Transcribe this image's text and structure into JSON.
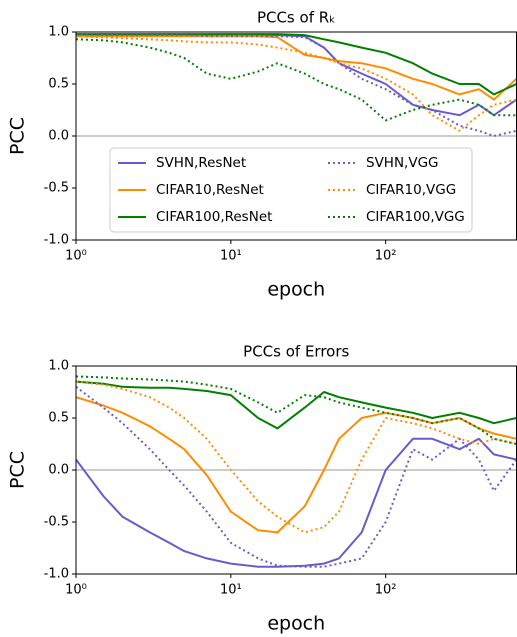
{
  "chart_data": [
    {
      "type": "line",
      "title": "PCCs of Rₖ",
      "xlabel": "epoch",
      "ylabel": "PCC",
      "xscale": "log",
      "xlim": [
        1,
        700
      ],
      "xticks": [
        {
          "value": 1,
          "label": "10⁰"
        },
        {
          "value": 10,
          "label": "10¹"
        },
        {
          "value": 100,
          "label": "10²"
        }
      ],
      "ylim": [
        -1,
        1
      ],
      "yticks": [
        {
          "value": -1,
          "label": "-1.0"
        },
        {
          "value": -0.5,
          "label": "-0.5"
        },
        {
          "value": 0,
          "label": "0.0"
        },
        {
          "value": 0.5,
          "label": "0.5"
        },
        {
          "value": 1,
          "label": "1.0"
        }
      ],
      "hline": 0,
      "legend": "lower center",
      "x": [
        1,
        1.5,
        2,
        3,
        4,
        5,
        7,
        10,
        15,
        20,
        30,
        40,
        50,
        70,
        100,
        150,
        200,
        300,
        400,
        500,
        700
      ],
      "series": [
        {
          "name": "SVHN,ResNet",
          "color": "#6a5acd",
          "style": "solid",
          "values": [
            0.97,
            0.97,
            0.97,
            0.97,
            0.97,
            0.97,
            0.97,
            0.97,
            0.97,
            0.97,
            0.96,
            0.85,
            0.7,
            0.6,
            0.5,
            0.3,
            0.25,
            0.2,
            0.3,
            0.2,
            0.35
          ]
        },
        {
          "name": "CIFAR10,ResNet",
          "color": "#ff8c00",
          "style": "solid",
          "values": [
            0.96,
            0.96,
            0.96,
            0.96,
            0.96,
            0.96,
            0.96,
            0.96,
            0.96,
            0.95,
            0.78,
            0.75,
            0.72,
            0.7,
            0.65,
            0.55,
            0.5,
            0.4,
            0.45,
            0.35,
            0.55
          ]
        },
        {
          "name": "CIFAR100,ResNet",
          "color": "#008000",
          "style": "solid",
          "values": [
            0.98,
            0.98,
            0.98,
            0.98,
            0.98,
            0.98,
            0.98,
            0.98,
            0.98,
            0.98,
            0.97,
            0.93,
            0.9,
            0.85,
            0.8,
            0.7,
            0.6,
            0.5,
            0.5,
            0.4,
            0.5
          ]
        },
        {
          "name": "SVHN,VGG",
          "color": "#6a5acd",
          "style": "dotted",
          "values": [
            0.97,
            0.97,
            0.97,
            0.97,
            0.97,
            0.97,
            0.96,
            0.96,
            0.96,
            0.96,
            0.95,
            0.85,
            0.7,
            0.55,
            0.45,
            0.3,
            0.25,
            0.1,
            0.05,
            0.0,
            0.05
          ]
        },
        {
          "name": "CIFAR10,VGG",
          "color": "#ff8c00",
          "style": "dotted",
          "values": [
            0.96,
            0.95,
            0.94,
            0.93,
            0.92,
            0.91,
            0.9,
            0.9,
            0.88,
            0.85,
            0.8,
            0.75,
            0.7,
            0.65,
            0.55,
            0.4,
            0.2,
            0.05,
            0.2,
            0.3,
            0.35
          ]
        },
        {
          "name": "CIFAR100,VGG",
          "color": "#008000",
          "style": "dotted",
          "values": [
            0.93,
            0.92,
            0.9,
            0.85,
            0.8,
            0.75,
            0.6,
            0.55,
            0.62,
            0.7,
            0.6,
            0.5,
            0.45,
            0.35,
            0.15,
            0.25,
            0.3,
            0.35,
            0.3,
            0.2,
            0.2
          ]
        }
      ]
    },
    {
      "type": "line",
      "title": "PCCs of Errors",
      "xlabel": "epoch",
      "ylabel": "PCC",
      "xscale": "log",
      "xlim": [
        1,
        700
      ],
      "xticks": [
        {
          "value": 1,
          "label": "10⁰"
        },
        {
          "value": 10,
          "label": "10¹"
        },
        {
          "value": 100,
          "label": "10²"
        }
      ],
      "ylim": [
        -1,
        1
      ],
      "yticks": [
        {
          "value": -1,
          "label": "-1.0"
        },
        {
          "value": -0.5,
          "label": "-0.5"
        },
        {
          "value": 0,
          "label": "0.0"
        },
        {
          "value": 0.5,
          "label": "0.5"
        },
        {
          "value": 1,
          "label": "1.0"
        }
      ],
      "hline": 0,
      "x": [
        1,
        1.5,
        2,
        3,
        4,
        5,
        7,
        10,
        15,
        20,
        30,
        40,
        50,
        70,
        100,
        150,
        200,
        300,
        400,
        500,
        700
      ],
      "series": [
        {
          "name": "SVHN,ResNet",
          "color": "#6a5acd",
          "style": "solid",
          "values": [
            0.1,
            -0.25,
            -0.45,
            -0.6,
            -0.7,
            -0.78,
            -0.85,
            -0.9,
            -0.93,
            -0.93,
            -0.92,
            -0.9,
            -0.85,
            -0.6,
            0.0,
            0.3,
            0.3,
            0.2,
            0.3,
            0.15,
            0.1
          ]
        },
        {
          "name": "CIFAR10,ResNet",
          "color": "#ff8c00",
          "style": "solid",
          "values": [
            0.7,
            0.62,
            0.55,
            0.42,
            0.3,
            0.2,
            -0.05,
            -0.4,
            -0.58,
            -0.6,
            -0.35,
            0.0,
            0.3,
            0.5,
            0.55,
            0.5,
            0.45,
            0.5,
            0.4,
            0.35,
            0.3
          ]
        },
        {
          "name": "CIFAR100,ResNet",
          "color": "#008000",
          "style": "solid",
          "values": [
            0.85,
            0.83,
            0.8,
            0.79,
            0.79,
            0.78,
            0.76,
            0.72,
            0.5,
            0.4,
            0.6,
            0.75,
            0.7,
            0.65,
            0.6,
            0.55,
            0.5,
            0.55,
            0.5,
            0.45,
            0.5
          ]
        },
        {
          "name": "SVHN,VGG",
          "color": "#6a5acd",
          "style": "dotted",
          "values": [
            0.8,
            0.6,
            0.45,
            0.2,
            0.0,
            -0.15,
            -0.4,
            -0.7,
            -0.85,
            -0.92,
            -0.93,
            -0.93,
            -0.9,
            -0.85,
            -0.5,
            0.2,
            0.1,
            0.3,
            0.1,
            -0.2,
            0.1
          ]
        },
        {
          "name": "CIFAR10,VGG",
          "color": "#ff8c00",
          "style": "dotted",
          "values": [
            0.85,
            0.82,
            0.78,
            0.7,
            0.6,
            0.5,
            0.3,
            0.0,
            -0.3,
            -0.45,
            -0.6,
            -0.55,
            -0.4,
            0.1,
            0.5,
            0.45,
            0.4,
            0.3,
            0.25,
            0.3,
            0.25
          ]
        },
        {
          "name": "CIFAR100,VGG",
          "color": "#008000",
          "style": "dotted",
          "values": [
            0.9,
            0.89,
            0.88,
            0.87,
            0.86,
            0.85,
            0.82,
            0.78,
            0.65,
            0.55,
            0.72,
            0.7,
            0.65,
            0.6,
            0.55,
            0.5,
            0.45,
            0.5,
            0.4,
            0.3,
            0.25
          ]
        }
      ]
    }
  ]
}
